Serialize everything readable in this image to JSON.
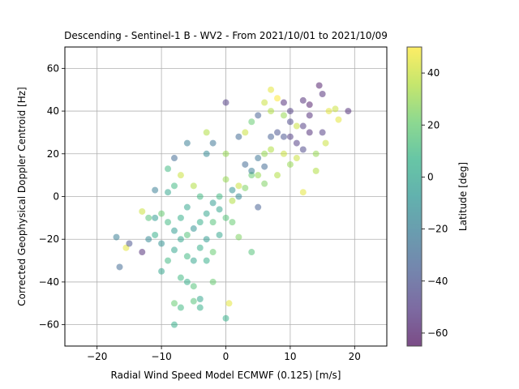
{
  "chart_data": {
    "type": "scatter",
    "title": "Descending - Sentinel-1 B - WV2 - From 2021/10/01 to 2021/10/09",
    "xlabel": "Radial Wind Speed Model ECMWF (0.125) [m/s]",
    "ylabel": "Corrected Geophysical Doppler Centroid [Hz]",
    "xlim": [
      -25,
      25
    ],
    "ylim": [
      -70,
      70
    ],
    "xticks": [
      -20,
      -10,
      0,
      10,
      20
    ],
    "yticks": [
      -60,
      -40,
      -20,
      0,
      20,
      40,
      60
    ],
    "grid": true,
    "colorbar": {
      "label": "Latitude [deg]",
      "colormap": "viridis",
      "range": [
        -65,
        50
      ],
      "ticks": [
        -60,
        -40,
        -20,
        0,
        20,
        40
      ]
    },
    "marker_alpha": 0.5,
    "series": [
      {
        "description_points": "approximate representative sample (x m/s, y Hz, latitude deg)",
        "points": [
          [
            -17,
            -19,
            -20
          ],
          [
            -16.5,
            -33,
            -30
          ],
          [
            -15.5,
            -24,
            45
          ],
          [
            -15,
            -22,
            -40
          ],
          [
            -13,
            -26,
            -55
          ],
          [
            -13,
            -7,
            40
          ],
          [
            -12,
            -10,
            15
          ],
          [
            -11,
            3,
            -20
          ],
          [
            -10,
            -35,
            0
          ],
          [
            -9,
            13,
            10
          ],
          [
            -8,
            -50,
            20
          ],
          [
            -8,
            -60,
            5
          ],
          [
            -8,
            18,
            -30
          ],
          [
            -7,
            -52,
            10
          ],
          [
            -6,
            25,
            -20
          ],
          [
            -5,
            -49,
            15
          ],
          [
            -4,
            -52,
            5
          ],
          [
            -4,
            -48,
            0
          ],
          [
            -3,
            30,
            35
          ],
          [
            -2,
            -40,
            20
          ],
          [
            0,
            44,
            -50
          ],
          [
            0,
            -57,
            5
          ],
          [
            0.5,
            -50,
            45
          ],
          [
            2,
            -19,
            25
          ],
          [
            4,
            -26,
            15
          ],
          [
            5,
            -5,
            -35
          ],
          [
            6,
            44,
            40
          ],
          [
            7,
            50,
            45
          ],
          [
            8,
            46,
            50
          ],
          [
            9,
            44,
            -55
          ],
          [
            10,
            40,
            -50
          ],
          [
            11,
            33,
            40
          ],
          [
            12,
            2,
            45
          ],
          [
            12,
            45,
            -55
          ],
          [
            13,
            43,
            -60
          ],
          [
            14.5,
            52,
            -60
          ],
          [
            15,
            48,
            -55
          ],
          [
            16,
            40,
            45
          ],
          [
            17,
            41,
            40
          ],
          [
            17.5,
            36,
            45
          ],
          [
            19,
            40,
            -55
          ],
          [
            10,
            35,
            -45
          ],
          [
            9,
            28,
            -40
          ],
          [
            11,
            25,
            -50
          ],
          [
            7,
            28,
            -35
          ],
          [
            6,
            20,
            30
          ],
          [
            5,
            18,
            -25
          ],
          [
            4,
            10,
            20
          ],
          [
            3,
            15,
            -30
          ],
          [
            2,
            5,
            40
          ],
          [
            1,
            3,
            -10
          ],
          [
            0,
            8,
            30
          ],
          [
            -1,
            0,
            10
          ],
          [
            -2,
            -3,
            -5
          ],
          [
            -3,
            -8,
            0
          ],
          [
            -4,
            -12,
            5
          ],
          [
            -5,
            -15,
            -10
          ],
          [
            -6,
            -18,
            15
          ],
          [
            -7,
            -20,
            0
          ],
          [
            -8,
            -16,
            -5
          ],
          [
            -9,
            -12,
            10
          ],
          [
            -10,
            -8,
            20
          ],
          [
            -11,
            -18,
            5
          ],
          [
            -12,
            -20,
            -15
          ],
          [
            -6,
            -28,
            10
          ],
          [
            -5,
            -30,
            0
          ],
          [
            -4,
            -24,
            5
          ],
          [
            -3,
            -20,
            -5
          ],
          [
            -2,
            -12,
            15
          ],
          [
            -1,
            -6,
            0
          ],
          [
            1,
            -2,
            35
          ],
          [
            2,
            0,
            -15
          ],
          [
            3,
            4,
            25
          ],
          [
            4,
            12,
            -20
          ],
          [
            5,
            10,
            30
          ],
          [
            6,
            14,
            -30
          ],
          [
            7,
            22,
            35
          ],
          [
            8,
            30,
            -40
          ],
          [
            9,
            20,
            40
          ],
          [
            10,
            28,
            -50
          ],
          [
            11,
            18,
            40
          ],
          [
            12,
            22,
            -45
          ],
          [
            13,
            30,
            -55
          ],
          [
            14,
            20,
            30
          ],
          [
            12,
            33,
            -50
          ],
          [
            10,
            15,
            30
          ],
          [
            8,
            10,
            35
          ],
          [
            6,
            6,
            25
          ],
          [
            -7,
            -10,
            5
          ],
          [
            -8,
            -25,
            0
          ],
          [
            -9,
            -30,
            10
          ],
          [
            -10,
            -22,
            -10
          ],
          [
            -11,
            -10,
            -5
          ],
          [
            -6,
            -5,
            0
          ],
          [
            -5,
            5,
            35
          ],
          [
            -4,
            0,
            10
          ],
          [
            -3,
            -30,
            5
          ],
          [
            -2,
            -26,
            20
          ],
          [
            -1,
            -18,
            0
          ],
          [
            0,
            -10,
            15
          ],
          [
            1,
            -12,
            20
          ],
          [
            -7,
            -38,
            10
          ],
          [
            -6,
            -40,
            5
          ],
          [
            -5,
            -42,
            15
          ],
          [
            -9,
            2,
            0
          ],
          [
            -8,
            5,
            10
          ],
          [
            -7,
            10,
            40
          ],
          [
            -3,
            20,
            -15
          ],
          [
            -2,
            25,
            -25
          ],
          [
            0,
            20,
            30
          ],
          [
            2,
            28,
            -30
          ],
          [
            4,
            35,
            20
          ],
          [
            3,
            30,
            40
          ],
          [
            5,
            38,
            -35
          ],
          [
            7,
            40,
            35
          ],
          [
            9,
            38,
            30
          ],
          [
            13,
            38,
            -55
          ],
          [
            15,
            30,
            -50
          ],
          [
            15.5,
            25,
            40
          ],
          [
            14,
            12,
            35
          ]
        ]
      }
    ]
  }
}
